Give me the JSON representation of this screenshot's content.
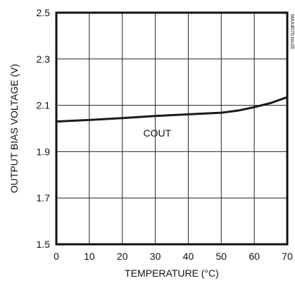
{
  "chart_data": {
    "type": "line",
    "title": "",
    "xlabel": "TEMPERATURE (°C)",
    "ylabel": "OUTPUT BIAS VOLTAGE (V)",
    "xlim": [
      0,
      70
    ],
    "ylim": [
      1.5,
      2.5
    ],
    "x_ticks": [
      0,
      10,
      20,
      30,
      40,
      50,
      60,
      70
    ],
    "y_ticks": [
      1.5,
      1.7,
      1.9,
      2.1,
      2.3,
      2.5
    ],
    "x_tick_labels": [
      "0",
      "10",
      "20",
      "30",
      "40",
      "50",
      "60",
      "70"
    ],
    "y_tick_labels": [
      "1.5",
      "1.7",
      "1.9",
      "2.1",
      "2.3",
      "2.5"
    ],
    "grid": true,
    "series": [
      {
        "name": "COUT",
        "color": "#1a1a1a",
        "x": [
          0,
          10,
          20,
          30,
          40,
          50,
          55,
          60,
          65,
          70
        ],
        "y": [
          2.03,
          2.037,
          2.045,
          2.054,
          2.061,
          2.068,
          2.077,
          2.092,
          2.11,
          2.135
        ]
      }
    ],
    "annotations": [
      {
        "text": "COUT",
        "x": 27,
        "y": 1.98
      }
    ],
    "side_text": "MAX4070 toc26"
  }
}
